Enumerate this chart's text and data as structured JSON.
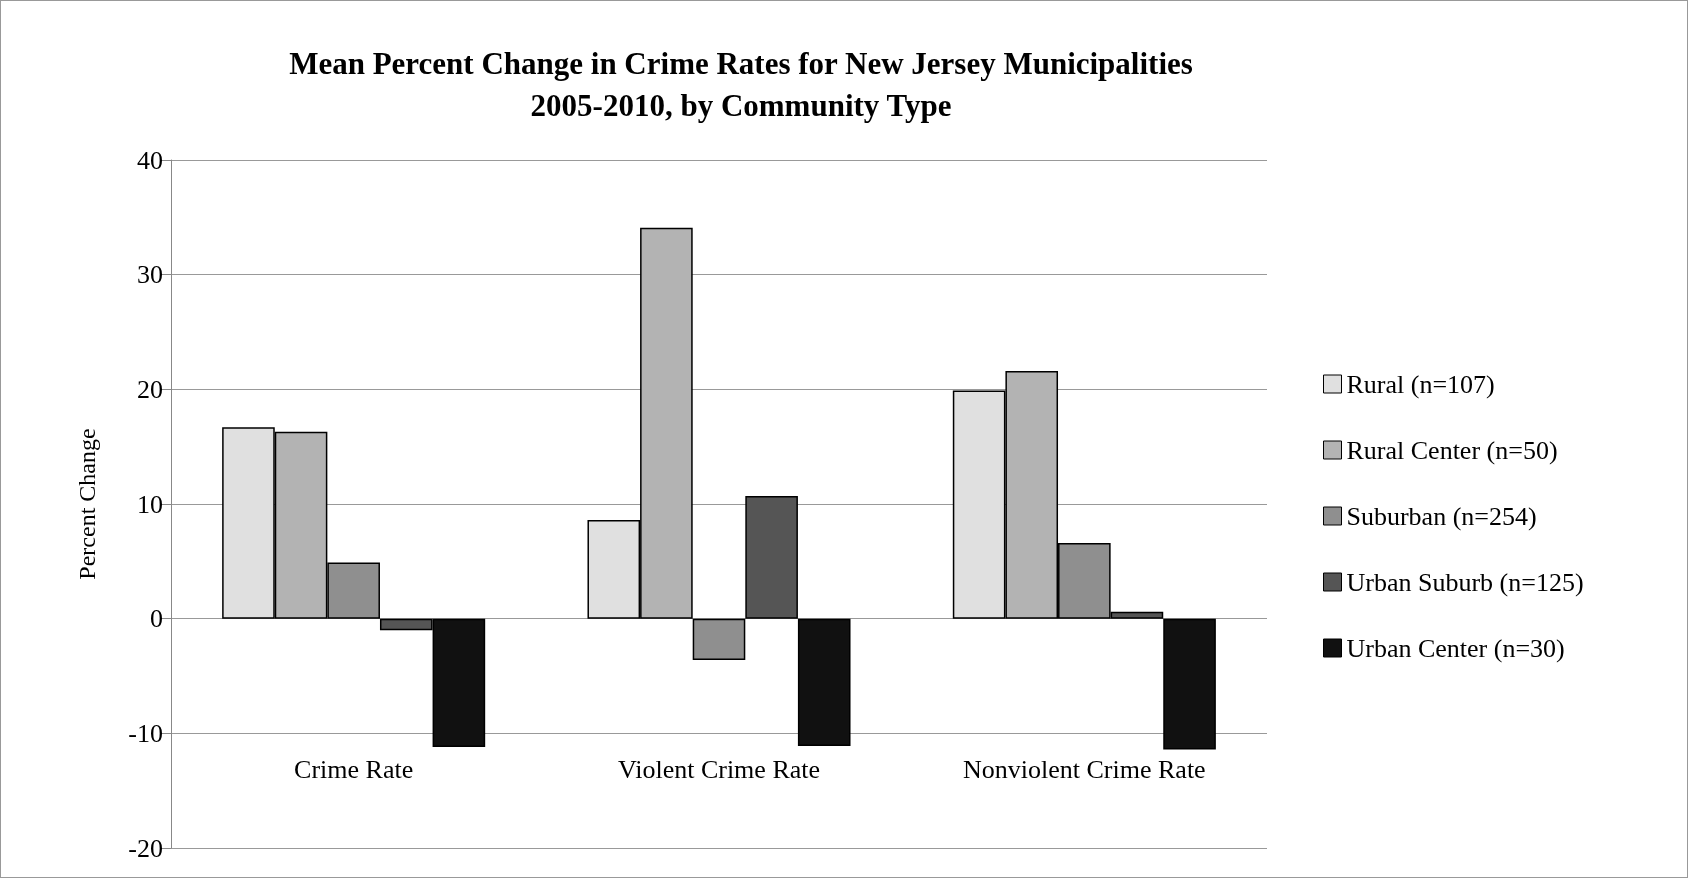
{
  "chart_data": {
    "type": "bar",
    "title": "Mean Percent Change in Crime Rates for New Jersey Municipalities\n2005-2010, by Community Type",
    "ylabel": "Percent Change",
    "categories": [
      "Crime Rate",
      "Violent Crime Rate",
      "Nonviolent Crime Rate"
    ],
    "series": [
      {
        "name": "Rural (n=107)",
        "color": "#e0e0e0",
        "values": [
          16.7,
          8.6,
          19.9
        ]
      },
      {
        "name": "Rural Center (n=50)",
        "color": "#b3b3b3",
        "values": [
          16.3,
          34.1,
          21.6
        ]
      },
      {
        "name": "Suburban (n=254)",
        "color": "#8f8f8f",
        "values": [
          4.9,
          -3.6,
          6.6
        ]
      },
      {
        "name": "Urban Suburb (n=125)",
        "color": "#555555",
        "values": [
          -1.0,
          10.7,
          0.6
        ]
      },
      {
        "name": "Urban Center (n=30)",
        "color": "#111111",
        "values": [
          -11.2,
          -11.1,
          -11.4
        ]
      }
    ],
    "ylim": [
      -20,
      40
    ],
    "yticks": [
      -20,
      -10,
      0,
      10,
      20,
      30,
      40
    ],
    "grid": "y",
    "legend": "right"
  }
}
